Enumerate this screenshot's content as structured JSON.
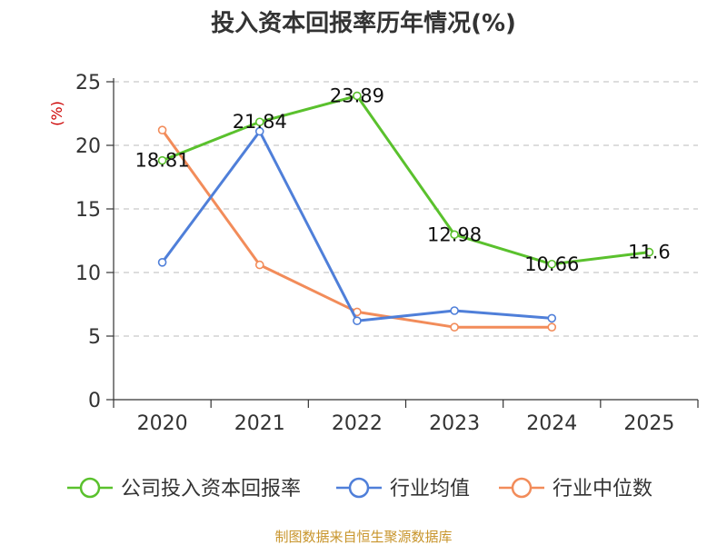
{
  "chart_data": {
    "type": "line",
    "title": "投入资本回报率历年情况(%)",
    "ylabel": "(%)",
    "xlabel": "",
    "ylim": [
      0,
      25
    ],
    "yticks": [
      0,
      5,
      10,
      15,
      20,
      25
    ],
    "grid": true,
    "categories": [
      "2020",
      "2021",
      "2022",
      "2023",
      "2024",
      "2025"
    ],
    "series": [
      {
        "name": "公司投入资本回报率",
        "color": "#5ac12d",
        "values": [
          18.81,
          21.84,
          23.89,
          12.98,
          10.66,
          11.6
        ],
        "labels": [
          "18.81",
          "21.84",
          "23.89",
          "12.98",
          "10.66",
          "11.6"
        ]
      },
      {
        "name": "行业均值",
        "color": "#4f7fd9",
        "values": [
          10.8,
          21.1,
          6.2,
          7.0,
          6.4,
          null
        ]
      },
      {
        "name": "行业中位数",
        "color": "#f28c5a",
        "values": [
          21.2,
          10.6,
          6.9,
          5.7,
          5.7,
          null
        ]
      }
    ],
    "legend_position": "bottom",
    "source": "制图数据来自恒生聚源数据库"
  }
}
